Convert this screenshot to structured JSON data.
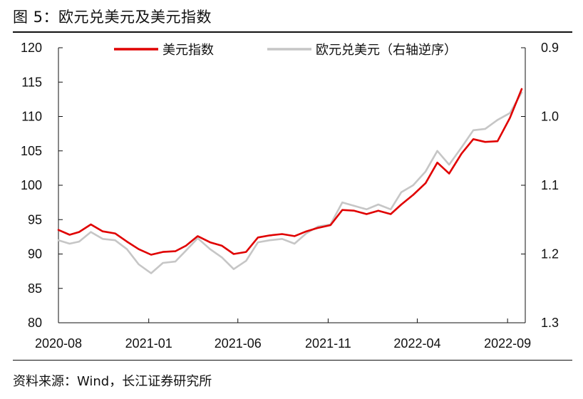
{
  "figure_title": "图 5：欧元兑美元及美元指数",
  "source": "资料来源：Wind，长江证券研究所",
  "chart_data": {
    "type": "line",
    "left_axis": {
      "ylim": [
        80,
        120
      ],
      "ticks": [
        80,
        85,
        90,
        95,
        100,
        105,
        110,
        115,
        120
      ]
    },
    "right_axis": {
      "ylim": [
        1.3,
        0.9
      ],
      "inverted": true,
      "ticks": [
        0.9,
        1.0,
        1.1,
        1.2,
        1.3
      ],
      "tick_labels": [
        "0.9",
        "1.0",
        "1.1",
        "1.2",
        "1.3"
      ]
    },
    "x_ticks": [
      "2020-08",
      "2021-01",
      "2021-06",
      "2021-11",
      "2022-04",
      "2022-09"
    ],
    "legend_position": "top",
    "series": [
      {
        "name": "美元指数",
        "axis": "left",
        "color": "#e00000",
        "x": [
          "2020-08-01",
          "2020-08-20",
          "2020-09-05",
          "2020-09-25",
          "2020-10-15",
          "2020-11-05",
          "2020-11-25",
          "2020-12-15",
          "2021-01-05",
          "2021-01-25",
          "2021-02-15",
          "2021-03-05",
          "2021-03-25",
          "2021-04-15",
          "2021-05-05",
          "2021-05-25",
          "2021-06-15",
          "2021-07-05",
          "2021-07-25",
          "2021-08-15",
          "2021-09-05",
          "2021-09-25",
          "2021-10-15",
          "2021-11-05",
          "2021-11-25",
          "2021-12-15",
          "2022-01-05",
          "2022-01-25",
          "2022-02-15",
          "2022-03-05",
          "2022-03-25",
          "2022-04-15",
          "2022-05-05",
          "2022-05-25",
          "2022-06-15",
          "2022-07-05",
          "2022-07-25",
          "2022-08-15",
          "2022-09-05",
          "2022-09-25"
        ],
        "values": [
          93.5,
          92.8,
          93.2,
          94.3,
          93.3,
          93.0,
          91.8,
          90.7,
          89.9,
          90.3,
          90.4,
          91.2,
          92.6,
          91.7,
          91.2,
          90.0,
          90.3,
          92.4,
          92.7,
          92.9,
          92.6,
          93.3,
          93.8,
          94.2,
          96.4,
          96.3,
          95.8,
          96.3,
          95.8,
          97.2,
          98.6,
          100.3,
          103.3,
          101.7,
          104.6,
          106.7,
          106.3,
          106.4,
          109.8,
          114.0
        ]
      },
      {
        "name": "欧元兑美元（右轴逆序）",
        "axis": "right",
        "color": "#c6c6c6",
        "x": [
          "2020-08-01",
          "2020-08-20",
          "2020-09-05",
          "2020-09-25",
          "2020-10-15",
          "2020-11-05",
          "2020-11-25",
          "2020-12-15",
          "2021-01-05",
          "2021-01-25",
          "2021-02-15",
          "2021-03-05",
          "2021-03-25",
          "2021-04-15",
          "2021-05-05",
          "2021-05-25",
          "2021-06-15",
          "2021-07-05",
          "2021-07-25",
          "2021-08-15",
          "2021-09-05",
          "2021-09-25",
          "2021-10-15",
          "2021-11-05",
          "2021-11-25",
          "2021-12-15",
          "2022-01-05",
          "2022-01-25",
          "2022-02-15",
          "2022-03-05",
          "2022-03-25",
          "2022-04-15",
          "2022-05-05",
          "2022-05-25",
          "2022-06-15",
          "2022-07-05",
          "2022-07-25",
          "2022-08-15",
          "2022-09-05",
          "2022-09-25"
        ],
        "values": [
          1.18,
          1.185,
          1.182,
          1.168,
          1.178,
          1.18,
          1.193,
          1.215,
          1.228,
          1.213,
          1.211,
          1.195,
          1.177,
          1.193,
          1.205,
          1.222,
          1.21,
          1.183,
          1.18,
          1.178,
          1.185,
          1.17,
          1.16,
          1.157,
          1.125,
          1.13,
          1.135,
          1.128,
          1.135,
          1.11,
          1.1,
          1.08,
          1.05,
          1.07,
          1.045,
          1.02,
          1.018,
          1.005,
          0.995,
          0.965
        ]
      }
    ]
  }
}
